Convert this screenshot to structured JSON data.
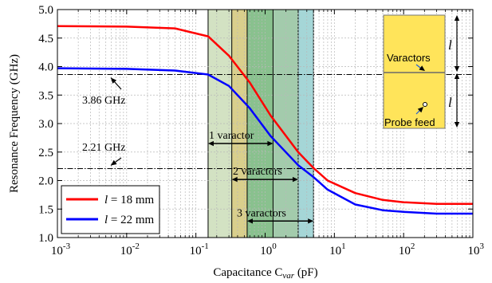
{
  "chart_data": {
    "type": "line",
    "xlabel_prefix": "Capacitance C",
    "xlabel_sub": "var",
    "xlabel_suffix": " (pF)",
    "ylabel": "Resonance Frequency (GHz)",
    "xscale": "log",
    "xlim": [
      0.001,
      1000
    ],
    "ylim": [
      1.0,
      5.0
    ],
    "grid": true,
    "legend_placement": "bottom-left",
    "x_ticks": [
      {
        "value": 0.001,
        "base": "10",
        "exp": "-3"
      },
      {
        "value": 0.01,
        "base": "10",
        "exp": "-2"
      },
      {
        "value": 0.1,
        "base": "10",
        "exp": "-1"
      },
      {
        "value": 1,
        "base": "10",
        "exp": "0"
      },
      {
        "value": 10,
        "base": "10",
        "exp": "1"
      },
      {
        "value": 100,
        "base": "10",
        "exp": "2"
      },
      {
        "value": 1000,
        "base": "10",
        "exp": "3"
      }
    ],
    "y_ticks": [
      "1.0",
      "1.5",
      "2.0",
      "2.5",
      "3.0",
      "3.5",
      "4.0",
      "4.5",
      "5.0"
    ],
    "series": [
      {
        "name_italic": "l",
        "name_rest": " = 18 mm",
        "color": "#ff0000",
        "x": [
          0.001,
          0.01,
          0.05,
          0.15,
          0.3,
          0.6,
          1.2,
          3,
          5,
          8,
          20,
          50,
          100,
          300,
          1000
        ],
        "y": [
          4.71,
          4.7,
          4.67,
          4.53,
          4.19,
          3.72,
          3.14,
          2.5,
          2.22,
          2.0,
          1.78,
          1.66,
          1.62,
          1.59,
          1.59
        ]
      },
      {
        "name_italic": "l",
        "name_rest": " = 22 mm",
        "color": "#0000ff",
        "x": [
          0.001,
          0.01,
          0.05,
          0.15,
          0.3,
          0.6,
          1.2,
          3,
          5,
          8,
          20,
          50,
          100,
          300,
          1000
        ],
        "y": [
          3.97,
          3.96,
          3.93,
          3.86,
          3.66,
          3.27,
          2.78,
          2.27,
          2.06,
          1.84,
          1.58,
          1.48,
          1.45,
          1.42,
          1.42
        ]
      }
    ],
    "reference_lines": [
      {
        "y": 3.86,
        "label": "3.86 GHz"
      },
      {
        "y": 2.21,
        "label": "2.21 GHz"
      }
    ],
    "shaded_bands": [
      {
        "x1": 0.15,
        "x2": 5,
        "color": "#9ebf7a"
      },
      {
        "x1": 0.33,
        "x2": 0.55,
        "color": "#e0b84a"
      },
      {
        "x1": 0.55,
        "x2": 1.3,
        "color": "#2e9a4e"
      },
      {
        "x1": 1.3,
        "x2": 3,
        "color": "#68b090"
      },
      {
        "x1": 3,
        "x2": 5,
        "color": "#6cc8f0"
      }
    ],
    "ranges": [
      {
        "label": "1 varactor",
        "x1": 0.15,
        "x2": 1.3,
        "y": 2.65
      },
      {
        "label": "2 varactors",
        "x1": 0.33,
        "x2": 3,
        "y": 2.02
      },
      {
        "label": "3 varactors",
        "x1": 0.55,
        "x2": 5,
        "y": 1.29
      }
    ],
    "inset": {
      "varactors_label": "Varactors",
      "probe_label": "Probe feed",
      "dim_label": "l",
      "fill": "#ffe45a"
    }
  }
}
